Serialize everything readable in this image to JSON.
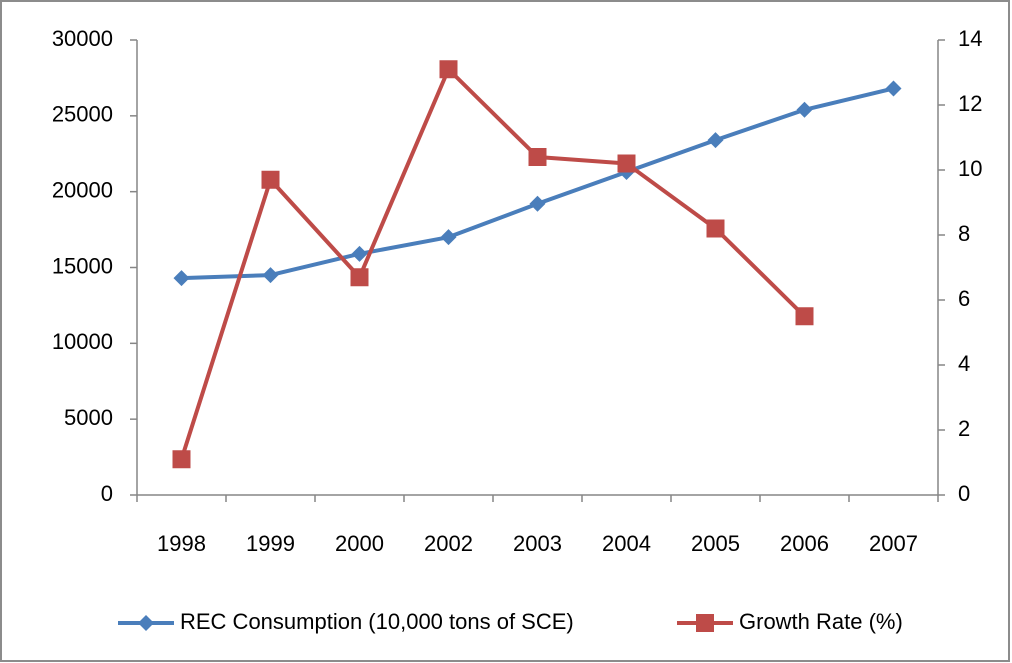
{
  "chart_data": {
    "type": "line",
    "categories": [
      "1998",
      "1999",
      "2000",
      "2002",
      "2003",
      "2004",
      "2005",
      "2006",
      "2007"
    ],
    "series": [
      {
        "name": "REC Consumption (10,000 tons of SCE)",
        "color": "#4a7ebb",
        "marker": "diamond",
        "values": [
          14300,
          14500,
          15900,
          17000,
          19200,
          21300,
          23400,
          25400,
          26800
        ]
      },
      {
        "name": "Growth Rate (%)",
        "color": "#be4b48",
        "marker": "square",
        "axis": "y2",
        "values": [
          1.1,
          9.7,
          6.7,
          13.1,
          10.4,
          10.2,
          8.2,
          5.5,
          null
        ]
      }
    ],
    "ylim": [
      0,
      30000
    ],
    "yticks": [
      0,
      5000,
      10000,
      15000,
      20000,
      25000,
      30000
    ],
    "y2lim": [
      0,
      14
    ],
    "y2ticks": [
      0,
      2,
      4,
      6,
      8,
      10,
      12,
      14
    ],
    "legend": "bottom"
  }
}
